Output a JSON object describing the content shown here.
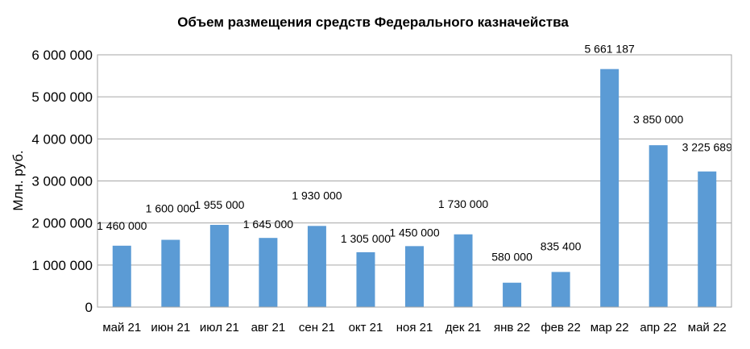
{
  "chart_data": {
    "type": "bar",
    "title": "Объем размещения средств Федерального казначейства",
    "ylabel": "Млн. руб.",
    "xlabel": "",
    "categories": [
      "май 21",
      "июн 21",
      "июл 21",
      "авг 21",
      "сен 21",
      "окт 21",
      "ноя 21",
      "дек 21",
      "янв 22",
      "фев 22",
      "мар 22",
      "апр 22",
      "май 22"
    ],
    "values": [
      1460000,
      1600000,
      1955000,
      1645000,
      1930000,
      1305000,
      1450000,
      1730000,
      580000,
      835400,
      5661187,
      3850000,
      3225689
    ],
    "data_labels": [
      "1 460 000",
      "1 600 000",
      "1 955 000",
      "1 645 000",
      "1 930 000",
      "1 305 000",
      "1 450 000",
      "1 730 000",
      "580 000",
      "835 400",
      "5 661 187",
      "3 850 000",
      "3 225 689"
    ],
    "yticks": [
      0,
      1000000,
      2000000,
      3000000,
      4000000,
      5000000,
      6000000
    ],
    "ytick_labels": [
      "0",
      "1 000 000",
      "2 000 000",
      "3 000 000",
      "4 000 000",
      "5 000 000",
      "6 000 000"
    ],
    "ylim": [
      0,
      6000000
    ],
    "grid": true,
    "legend": "none",
    "bar_color": "#5b9bd5",
    "grid_color": "#a6a6a6"
  }
}
